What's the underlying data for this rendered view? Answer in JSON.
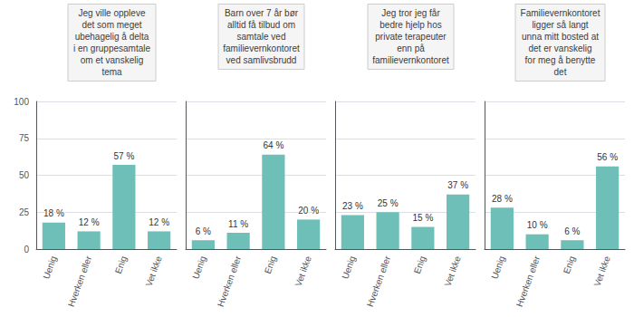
{
  "chart_data": [
    {
      "type": "bar",
      "title": "Jeg ville oppleve\ndet som meget\nubehagelig å delta\ni en gruppesamtale\nom et vanskelig\ntema",
      "categories": [
        "Uenig",
        "Hverken eller",
        "Enig",
        "Vet ikke"
      ],
      "values": [
        18,
        12,
        57,
        12
      ],
      "value_labels": [
        "18 %",
        "12 %",
        "57 %",
        "12 %"
      ],
      "color": "#6dbfb8",
      "ylim": [
        0,
        100
      ],
      "yticks": [
        0,
        25,
        50,
        75,
        100
      ],
      "grid": true,
      "data_labels": true
    },
    {
      "type": "bar",
      "title": "Barn over 7 år bør\nalltid få tilbud om\nsamtale ved\nfamilievernkontoret\nved samlivsbrudd",
      "categories": [
        "Uenig",
        "Hverken eller",
        "Enig",
        "Vet ikke"
      ],
      "values": [
        6,
        11,
        64,
        20
      ],
      "value_labels": [
        "6 %",
        "11 %",
        "64 %",
        "20 %"
      ],
      "color": "#6dbfb8",
      "ylim": [
        0,
        100
      ],
      "yticks": [
        0,
        25,
        50,
        75,
        100
      ],
      "grid": true,
      "data_labels": true,
      "tick_labels": "x"
    },
    {
      "type": "bar",
      "title": "Jeg tror jeg får\nbedre hjelp hos\nprivate terapeuter\nenn på\nfamilievernkontoret",
      "categories": [
        "Uenig",
        "Hverken eller",
        "Enig",
        "Vet ikke"
      ],
      "values": [
        23,
        25,
        15,
        37
      ],
      "value_labels": [
        "23 %",
        "25 %",
        "15 %",
        "37 %"
      ],
      "color": "#6dbfb8",
      "ylim": [
        0,
        100
      ],
      "yticks": [
        0,
        25,
        50,
        75,
        100
      ],
      "grid": true,
      "data_labels": true,
      "tick_labels": "x"
    },
    {
      "type": "bar",
      "title": "Familievernkontoret\nligger så langt\nunna mitt bosted at\ndet er vanskelig\nfor meg å benytte\ndet",
      "categories": [
        "Uenig",
        "Hverken eller",
        "Enig",
        "Vet ikke"
      ],
      "values": [
        28,
        10,
        6,
        56
      ],
      "value_labels": [
        "28 %",
        "10 %",
        "6 %",
        "56 %"
      ],
      "color": "#6dbfb8",
      "ylim": [
        0,
        100
      ],
      "yticks": [
        0,
        25,
        50,
        75,
        100
      ],
      "grid": true,
      "data_labels": true,
      "tick_labels": "x"
    }
  ]
}
